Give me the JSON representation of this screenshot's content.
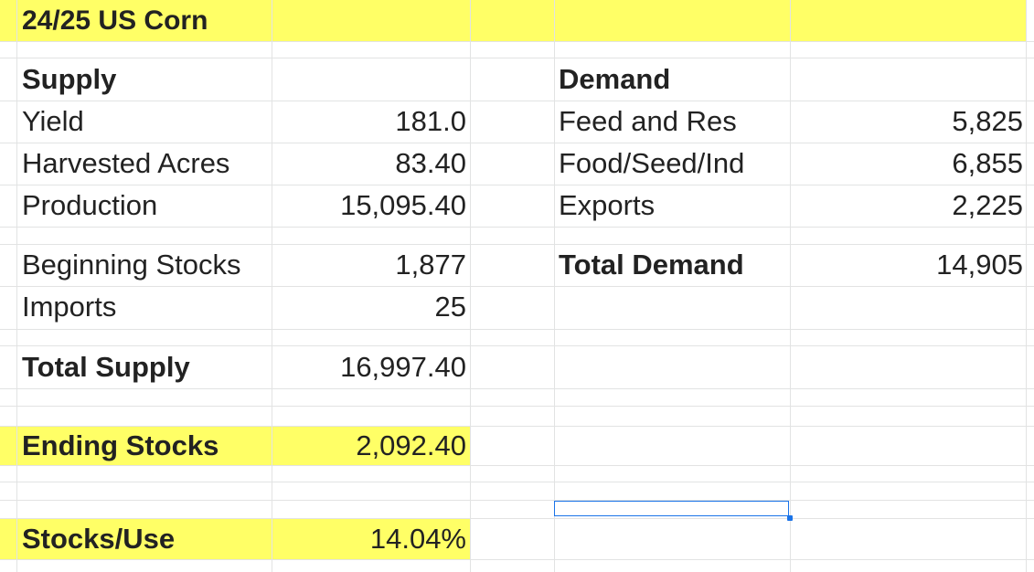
{
  "sheet": {
    "title": "24/25 US Corn",
    "highlight_color": "#ffff66",
    "selection_color": "#1a73e8"
  },
  "supply": {
    "heading": "Supply",
    "yield_label": "Yield",
    "yield_value": "181.0",
    "acres_label": "Harvested Acres",
    "acres_value": "83.40",
    "production_label": "Production",
    "production_value": "15,095.40",
    "beginning_label": "Beginning Stocks",
    "beginning_value": "1,877",
    "imports_label": "Imports",
    "imports_value": "25",
    "total_label": "Total Supply",
    "total_value": "16,997.40"
  },
  "demand": {
    "heading": "Demand",
    "feed_label": "Feed and Res",
    "feed_value": "5,825",
    "fsi_label": "Food/Seed/Ind",
    "fsi_value": "6,855",
    "exports_label": "Exports",
    "exports_value": "2,225",
    "total_label": "Total Demand",
    "total_value": "14,905"
  },
  "summary": {
    "ending_label": "Ending Stocks",
    "ending_value": "2,092.40",
    "ratio_label": "Stocks/Use",
    "ratio_value": "14.04%"
  }
}
